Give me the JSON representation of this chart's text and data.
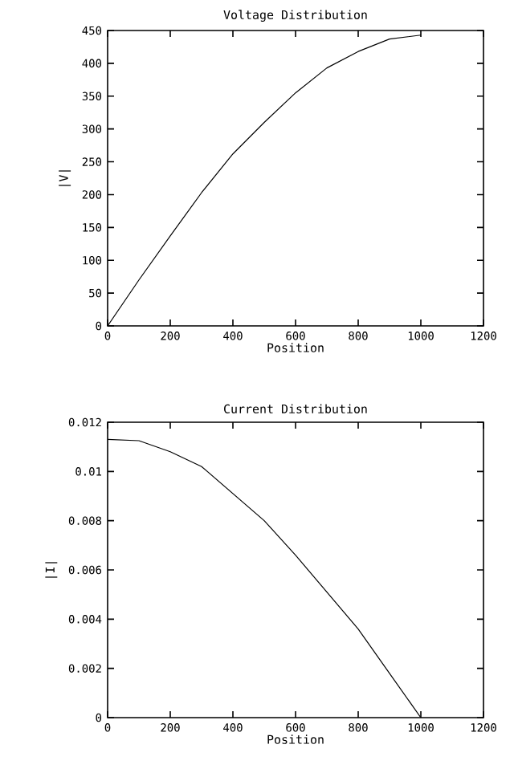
{
  "chart_data": [
    {
      "type": "line",
      "title": "Voltage Distribution",
      "xlabel": "Position",
      "ylabel": "|V|",
      "x": [
        0,
        100,
        200,
        300,
        400,
        500,
        600,
        700,
        800,
        900,
        1000
      ],
      "series": [
        {
          "color": "#000000",
          "values": [
            0,
            70,
            137,
            203,
            262,
            310,
            355,
            393,
            418,
            437,
            443
          ]
        }
      ],
      "xlim": [
        0,
        1200
      ],
      "ylim": [
        0,
        450
      ],
      "xticks": [
        0,
        200,
        400,
        600,
        800,
        1000,
        1200
      ],
      "yticks": [
        0,
        50,
        100,
        150,
        200,
        250,
        300,
        350,
        400,
        450
      ],
      "grid": false,
      "marker": "none",
      "line_style": "solid"
    },
    {
      "type": "line",
      "title": "Current Distribution",
      "xlabel": "Position",
      "ylabel": "|I|",
      "x": [
        0,
        100,
        200,
        300,
        400,
        500,
        600,
        700,
        800,
        900,
        1000
      ],
      "series": [
        {
          "color": "#000000",
          "values": [
            0.0113,
            0.01125,
            0.0108,
            0.0102,
            0.0091,
            0.008,
            0.0066,
            0.0051,
            0.0036,
            0.0018,
            0
          ]
        }
      ],
      "xlim": [
        0,
        1200
      ],
      "ylim": [
        0,
        0.012
      ],
      "xticks": [
        0,
        200,
        400,
        600,
        800,
        1000,
        1200
      ],
      "yticks": [
        0,
        0.002,
        0.004,
        0.006,
        0.008,
        0.01,
        0.012
      ],
      "grid": false,
      "marker": "none",
      "line_style": "solid"
    }
  ]
}
